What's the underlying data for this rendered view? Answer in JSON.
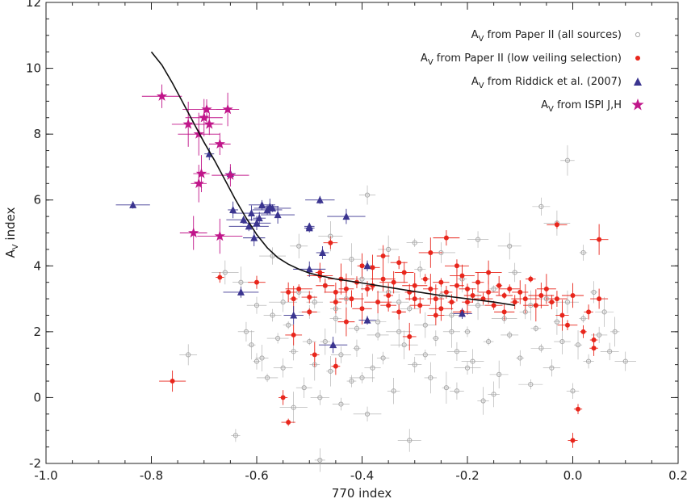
{
  "chart_data": {
    "type": "scatter",
    "xlabel": "770 index",
    "ylabel": "A",
    "ylabel_sub": "V",
    "ylabel_rest": " index",
    "xlim": [
      -1.0,
      0.2
    ],
    "ylim": [
      -2,
      12
    ],
    "xticks": [
      -1.0,
      -0.8,
      -0.6,
      -0.4,
      -0.2,
      0.0,
      0.2
    ],
    "xtick_labels": [
      "-1.0",
      "-0.8",
      "-0.6",
      "-0.4",
      "-0.2",
      "0.0",
      "0.2"
    ],
    "yticks": [
      -2,
      0,
      2,
      4,
      6,
      8,
      10,
      12
    ],
    "ytick_labels": [
      "-2",
      "0",
      "2",
      "4",
      "6",
      "8",
      "10",
      "12"
    ],
    "legend_position": "top-right",
    "colors": {
      "all_sources": "#a9a9a9",
      "low_veiling": "#e8261c",
      "riddick": "#3b3590",
      "ispi": "#c0168a",
      "curve": "#111111"
    },
    "series": [
      {
        "key": "all_sources",
        "legend_main": "A",
        "legend_sub": "V",
        "legend_rest": " from Paper II (all sources)",
        "marker": "open-circle",
        "points": [
          [
            -0.73,
            1.3
          ],
          [
            -0.64,
            -1.15
          ],
          [
            -0.62,
            2.0
          ],
          [
            -0.61,
            1.6
          ],
          [
            -0.6,
            2.8
          ],
          [
            -0.59,
            1.2
          ],
          [
            -0.58,
            0.6
          ],
          [
            -0.57,
            2.5
          ],
          [
            -0.56,
            1.8
          ],
          [
            -0.55,
            0.9
          ],
          [
            -0.54,
            2.2
          ],
          [
            -0.53,
            -0.3
          ],
          [
            -0.53,
            1.4
          ],
          [
            -0.52,
            3.2
          ],
          [
            -0.51,
            0.3
          ],
          [
            -0.5,
            2.6
          ],
          [
            -0.49,
            1.0
          ],
          [
            -0.49,
            2.9
          ],
          [
            -0.48,
            0.0
          ],
          [
            -0.47,
            1.7
          ],
          [
            -0.47,
            3.4
          ],
          [
            -0.46,
            0.8
          ],
          [
            -0.45,
            2.4
          ],
          [
            -0.44,
            -0.2
          ],
          [
            -0.44,
            1.3
          ],
          [
            -0.43,
            3.0
          ],
          [
            -0.42,
            0.5
          ],
          [
            -0.41,
            2.1
          ],
          [
            -0.41,
            1.5
          ],
          [
            -0.4,
            3.6
          ],
          [
            -0.39,
            -0.5
          ],
          [
            -0.39,
            6.15
          ],
          [
            -0.38,
            0.9
          ],
          [
            -0.37,
            2.3
          ],
          [
            -0.36,
            1.2
          ],
          [
            -0.35,
            3.2
          ],
          [
            -0.34,
            0.2
          ],
          [
            -0.33,
            2.0
          ],
          [
            -0.32,
            1.6
          ],
          [
            -0.31,
            -1.3
          ],
          [
            -0.31,
            2.7
          ],
          [
            -0.3,
            1.0
          ],
          [
            -0.29,
            3.9
          ],
          [
            -0.28,
            2.2
          ],
          [
            -0.27,
            0.6
          ],
          [
            -0.26,
            1.8
          ],
          [
            -0.25,
            3.1
          ],
          [
            -0.24,
            0.3
          ],
          [
            -0.23,
            2.5
          ],
          [
            -0.22,
            1.4
          ],
          [
            -0.21,
            3.6
          ],
          [
            -0.2,
            0.9
          ],
          [
            -0.2,
            2.0
          ],
          [
            -0.19,
            1.1
          ],
          [
            -0.18,
            2.8
          ],
          [
            -0.17,
            -0.1
          ],
          [
            -0.16,
            1.7
          ],
          [
            -0.15,
            3.3
          ],
          [
            -0.14,
            0.7
          ],
          [
            -0.13,
            2.4
          ],
          [
            -0.12,
            1.9
          ],
          [
            -0.11,
            3.8
          ],
          [
            -0.1,
            1.2
          ],
          [
            -0.09,
            2.6
          ],
          [
            -0.08,
            0.4
          ],
          [
            -0.07,
            2.1
          ],
          [
            -0.06,
            1.5
          ],
          [
            -0.05,
            3.0
          ],
          [
            -0.04,
            0.9
          ],
          [
            -0.03,
            2.3
          ],
          [
            -0.02,
            1.7
          ],
          [
            -0.01,
            7.2
          ],
          [
            -0.01,
            2.9
          ],
          [
            0.0,
            0.2
          ],
          [
            0.01,
            1.6
          ],
          [
            0.02,
            2.4
          ],
          [
            0.03,
            1.1
          ],
          [
            0.04,
            3.2
          ],
          [
            0.05,
            1.9
          ],
          [
            0.06,
            2.6
          ],
          [
            0.07,
            1.4
          ],
          [
            0.08,
            2.0
          ],
          [
            0.1,
            1.1
          ],
          [
            -0.66,
            3.8
          ],
          [
            -0.63,
            3.5
          ],
          [
            -0.57,
            4.3
          ],
          [
            -0.52,
            4.6
          ],
          [
            -0.46,
            4.9
          ],
          [
            -0.42,
            4.2
          ],
          [
            -0.35,
            4.5
          ],
          [
            -0.3,
            4.7
          ],
          [
            -0.25,
            4.4
          ],
          [
            -0.18,
            4.8
          ],
          [
            -0.12,
            4.6
          ],
          [
            -0.06,
            5.8
          ],
          [
            -0.03,
            5.3
          ],
          [
            0.02,
            4.4
          ],
          [
            -0.23,
            2.0
          ],
          [
            -0.28,
            1.3
          ],
          [
            -0.37,
            1.9
          ],
          [
            -0.45,
            2.7
          ],
          [
            -0.5,
            1.7
          ],
          [
            -0.55,
            2.9
          ],
          [
            -0.6,
            1.1
          ],
          [
            -0.48,
            -1.9
          ],
          [
            -0.15,
            0.1
          ],
          [
            -0.08,
            2.8
          ],
          [
            -0.33,
            2.9
          ],
          [
            -0.4,
            0.6
          ],
          [
            -0.22,
            0.2
          ]
        ]
      },
      {
        "key": "low_veiling",
        "legend_main": "A",
        "legend_sub": "V",
        "legend_rest": " from Paper II (low veiling selection)",
        "marker": "filled-circle",
        "points": [
          [
            -0.76,
            0.5
          ],
          [
            -0.67,
            3.65
          ],
          [
            -0.6,
            3.5
          ],
          [
            -0.54,
            3.2
          ],
          [
            -0.54,
            -0.75
          ],
          [
            -0.53,
            3.0
          ],
          [
            -0.53,
            1.9
          ],
          [
            -0.52,
            3.3
          ],
          [
            -0.5,
            3.05
          ],
          [
            -0.5,
            2.6
          ],
          [
            -0.49,
            1.3
          ],
          [
            -0.48,
            3.7
          ],
          [
            -0.47,
            3.4
          ],
          [
            -0.46,
            4.7
          ],
          [
            -0.45,
            3.2
          ],
          [
            -0.45,
            2.9
          ],
          [
            -0.44,
            3.6
          ],
          [
            -0.43,
            3.3
          ],
          [
            -0.42,
            3.0
          ],
          [
            -0.41,
            3.5
          ],
          [
            -0.4,
            4.0
          ],
          [
            -0.4,
            2.7
          ],
          [
            -0.39,
            3.3
          ],
          [
            -0.38,
            3.4
          ],
          [
            -0.37,
            2.9
          ],
          [
            -0.36,
            3.6
          ],
          [
            -0.36,
            4.3
          ],
          [
            -0.35,
            3.1
          ],
          [
            -0.34,
            3.5
          ],
          [
            -0.33,
            2.6
          ],
          [
            -0.32,
            3.8
          ],
          [
            -0.31,
            3.2
          ],
          [
            -0.3,
            3.4
          ],
          [
            -0.3,
            3.0
          ],
          [
            -0.29,
            2.8
          ],
          [
            -0.28,
            3.6
          ],
          [
            -0.27,
            3.3
          ],
          [
            -0.27,
            4.4
          ],
          [
            -0.26,
            3.0
          ],
          [
            -0.25,
            3.5
          ],
          [
            -0.24,
            4.85
          ],
          [
            -0.24,
            3.2
          ],
          [
            -0.23,
            2.9
          ],
          [
            -0.22,
            3.4
          ],
          [
            -0.21,
            3.7
          ],
          [
            -0.21,
            2.6
          ],
          [
            -0.2,
            3.3
          ],
          [
            -0.19,
            3.1
          ],
          [
            -0.18,
            3.5
          ],
          [
            -0.17,
            3.0
          ],
          [
            -0.16,
            3.2
          ],
          [
            -0.15,
            2.8
          ],
          [
            -0.14,
            3.4
          ],
          [
            -0.13,
            3.1
          ],
          [
            -0.12,
            3.3
          ],
          [
            -0.11,
            2.9
          ],
          [
            -0.1,
            3.2
          ],
          [
            -0.09,
            3.0
          ],
          [
            -0.08,
            3.6
          ],
          [
            -0.07,
            2.8
          ],
          [
            -0.06,
            3.1
          ],
          [
            -0.05,
            3.3
          ],
          [
            -0.04,
            2.9
          ],
          [
            -0.03,
            5.25
          ],
          [
            -0.03,
            3.0
          ],
          [
            -0.02,
            2.5
          ],
          [
            -0.01,
            2.2
          ],
          [
            0.0,
            3.1
          ],
          [
            0.02,
            2.0
          ],
          [
            0.03,
            2.6
          ],
          [
            0.04,
            1.75
          ],
          [
            0.05,
            3.0
          ],
          [
            0.05,
            4.8
          ],
          [
            0.04,
            1.5
          ],
          [
            0.01,
            -0.35
          ],
          [
            0.0,
            -1.3
          ],
          [
            -0.55,
            0.0
          ],
          [
            -0.45,
            0.95
          ],
          [
            -0.31,
            1.85
          ],
          [
            -0.26,
            2.5
          ],
          [
            -0.16,
            3.8
          ],
          [
            -0.38,
            3.95
          ],
          [
            -0.33,
            4.1
          ],
          [
            -0.22,
            4.0
          ],
          [
            -0.13,
            2.6
          ],
          [
            -0.43,
            2.3
          ],
          [
            -0.48,
            3.8
          ],
          [
            -0.35,
            2.8
          ],
          [
            -0.25,
            2.7
          ],
          [
            -0.2,
            2.9
          ]
        ]
      },
      {
        "key": "riddick",
        "legend_main": "A",
        "legend_sub": "V",
        "legend_rest": " from Riddick et al. (2007)",
        "marker": "triangle",
        "points": [
          [
            -0.835,
            5.85
          ],
          [
            -0.69,
            7.4
          ],
          [
            -0.65,
            6.8
          ],
          [
            -0.645,
            5.7
          ],
          [
            -0.625,
            5.4
          ],
          [
            -0.615,
            5.2
          ],
          [
            -0.61,
            5.6
          ],
          [
            -0.605,
            4.85
          ],
          [
            -0.6,
            5.3
          ],
          [
            -0.595,
            5.45
          ],
          [
            -0.59,
            5.85
          ],
          [
            -0.58,
            5.7
          ],
          [
            -0.575,
            5.8
          ],
          [
            -0.57,
            5.75
          ],
          [
            -0.56,
            5.55
          ],
          [
            -0.5,
            5.15
          ],
          [
            -0.5,
            5.2
          ],
          [
            -0.48,
            6.0
          ],
          [
            -0.475,
            4.4
          ],
          [
            -0.5,
            3.9
          ],
          [
            -0.43,
            5.5
          ],
          [
            -0.39,
            4.0
          ],
          [
            -0.455,
            1.6
          ],
          [
            -0.39,
            2.35
          ],
          [
            -0.63,
            3.2
          ],
          [
            -0.53,
            2.5
          ],
          [
            -0.21,
            2.55
          ]
        ]
      },
      {
        "key": "ispi",
        "legend_main": "A",
        "legend_sub": "V",
        "legend_rest": " from ISPI J,H",
        "marker": "star",
        "points": [
          [
            -0.78,
            9.15
          ],
          [
            -0.73,
            8.3
          ],
          [
            -0.71,
            8.0
          ],
          [
            -0.7,
            8.5
          ],
          [
            -0.695,
            8.75
          ],
          [
            -0.69,
            8.3
          ],
          [
            -0.67,
            7.7
          ],
          [
            -0.655,
            8.75
          ],
          [
            -0.65,
            6.75
          ],
          [
            -0.705,
            6.8
          ],
          [
            -0.71,
            6.5
          ],
          [
            -0.72,
            5.0
          ],
          [
            -0.67,
            4.9
          ]
        ]
      }
    ],
    "curve": [
      [
        -0.8,
        10.5
      ],
      [
        -0.78,
        10.1
      ],
      [
        -0.76,
        9.55
      ],
      [
        -0.74,
        8.95
      ],
      [
        -0.72,
        8.35
      ],
      [
        -0.7,
        7.75
      ],
      [
        -0.68,
        7.2
      ],
      [
        -0.66,
        6.6
      ],
      [
        -0.64,
        6.0
      ],
      [
        -0.62,
        5.45
      ],
      [
        -0.6,
        4.95
      ],
      [
        -0.58,
        4.55
      ],
      [
        -0.56,
        4.25
      ],
      [
        -0.54,
        4.05
      ],
      [
        -0.52,
        3.9
      ],
      [
        -0.5,
        3.78
      ],
      [
        -0.48,
        3.7
      ],
      [
        -0.45,
        3.6
      ],
      [
        -0.4,
        3.48
      ],
      [
        -0.35,
        3.35
      ],
      [
        -0.3,
        3.22
      ],
      [
        -0.25,
        3.1
      ],
      [
        -0.2,
        3.0
      ],
      [
        -0.15,
        2.9
      ],
      [
        -0.11,
        2.8
      ]
    ]
  }
}
